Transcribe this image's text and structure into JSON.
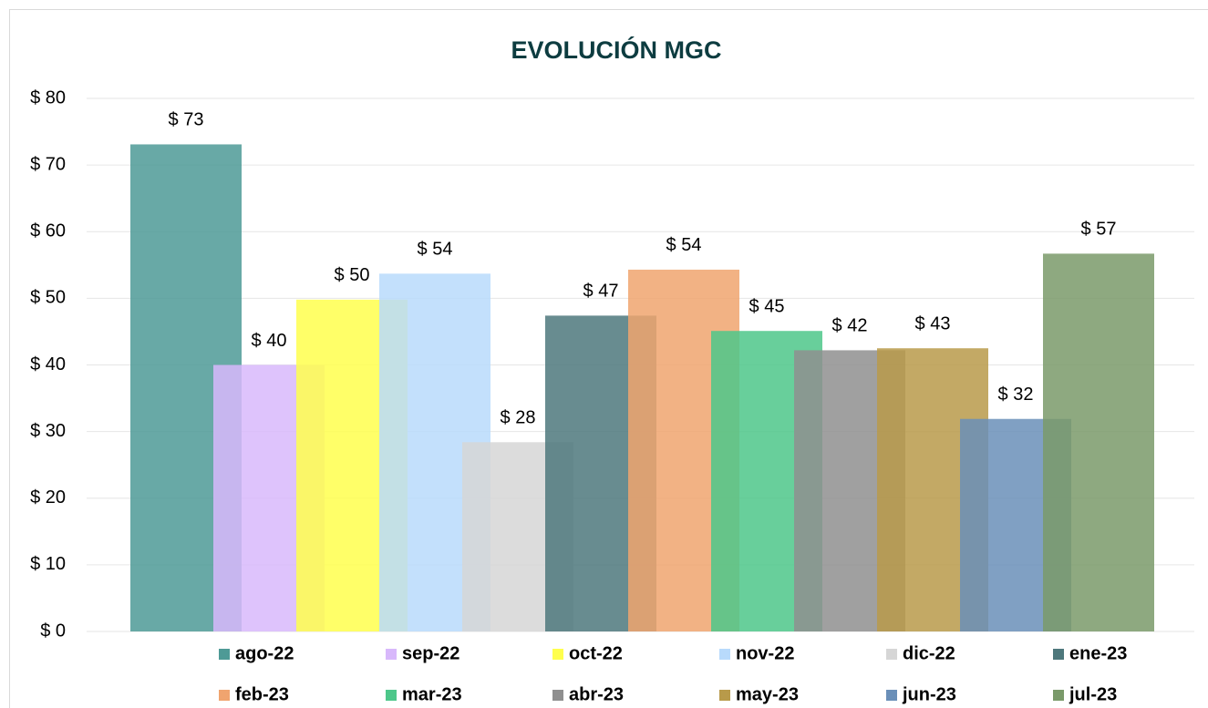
{
  "chart_data": {
    "type": "bar",
    "title": "EVOLUCIÓN MGC",
    "series": [
      {
        "name": "ago-22",
        "color": "#4e9a96",
        "values": [
          73.1
        ],
        "value_labels": [
          "$ 73"
        ]
      },
      {
        "name": "sep-22",
        "color": "#d8b8fb",
        "values": [
          40
        ],
        "value_labels": [
          "$ 40"
        ]
      },
      {
        "name": "oct-22",
        "color": "#ffff4d",
        "values": [
          49.8
        ],
        "value_labels": [
          "$ 50"
        ]
      },
      {
        "name": "nov-22",
        "color": "#b8dafc",
        "values": [
          53.7
        ],
        "value_labels": [
          "$ 54"
        ]
      },
      {
        "name": "dic-22",
        "color": "#d6d6d6",
        "values": [
          28.4
        ],
        "value_labels": [
          "$ 28"
        ]
      },
      {
        "name": "ene-23",
        "color": "#4e787c",
        "values": [
          47.4
        ],
        "value_labels": [
          "$ 47"
        ]
      },
      {
        "name": "feb-23",
        "color": "#f0a46f",
        "values": [
          54.3
        ],
        "value_labels": [
          "$ 54"
        ]
      },
      {
        "name": "mar-23",
        "color": "#4dc78a",
        "values": [
          45.1
        ],
        "value_labels": [
          "$ 45"
        ]
      },
      {
        "name": "abr-23",
        "color": "#8f8f8f",
        "values": [
          42.2
        ],
        "value_labels": [
          "$ 42"
        ]
      },
      {
        "name": "may-23",
        "color": "#b89a4a",
        "values": [
          42.5
        ],
        "value_labels": [
          "$ 43"
        ]
      },
      {
        "name": "jun-23",
        "color": "#6a8fb8",
        "values": [
          31.9
        ],
        "value_labels": [
          "$ 32"
        ]
      },
      {
        "name": "jul-23",
        "color": "#7a9a6a",
        "values": [
          56.7
        ],
        "value_labels": [
          "$ 57"
        ]
      }
    ],
    "ylim": [
      0,
      80
    ],
    "yticks": [
      {
        "value": 0,
        "label": "$ 0"
      },
      {
        "value": 10,
        "label": "$ 10"
      },
      {
        "value": 20,
        "label": "$ 20"
      },
      {
        "value": 30,
        "label": "$ 30"
      },
      {
        "value": 40,
        "label": "$ 40"
      },
      {
        "value": 50,
        "label": "$ 50"
      },
      {
        "value": 60,
        "label": "$ 60"
      },
      {
        "value": 70,
        "label": "$ 70"
      },
      {
        "value": 80,
        "label": "$ 80"
      }
    ],
    "grid": true,
    "legend": "bottom"
  }
}
